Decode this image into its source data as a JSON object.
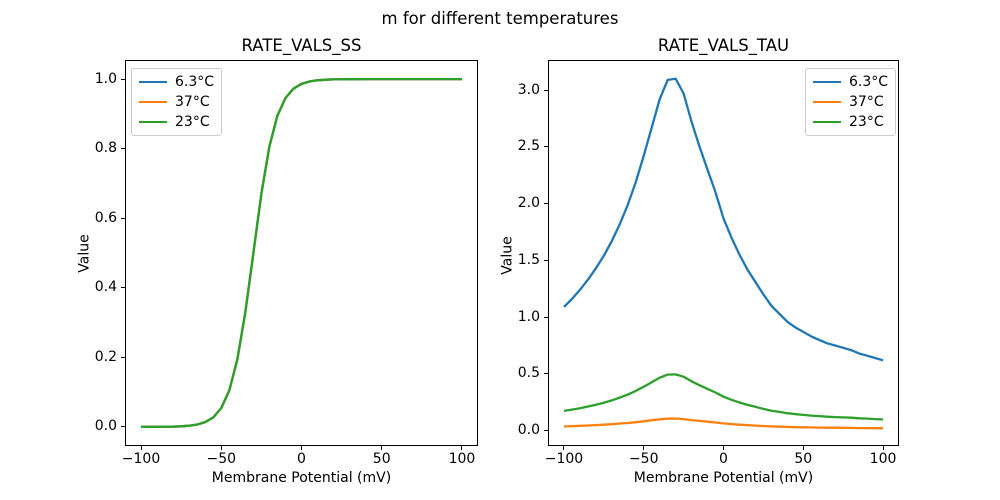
{
  "figure": {
    "suptitle": "m for different temperatures",
    "background": "#ffffff",
    "text_color": "#000000"
  },
  "chart_data": [
    {
      "type": "line",
      "title": "RATE_VALS_SS",
      "xlabel": "Membrane Potential (mV)",
      "ylabel": "Value",
      "xlim": [
        -110,
        110
      ],
      "ylim": [
        -0.055,
        1.055
      ],
      "grid": false,
      "legend_position": "upper left",
      "xticks": {
        "values": [
          -100,
          -50,
          0,
          50,
          100
        ],
        "labels": [
          "−100",
          "−50",
          "0",
          "50",
          "100"
        ]
      },
      "yticks": {
        "values": [
          0.0,
          0.2,
          0.4,
          0.6,
          0.8,
          1.0
        ],
        "labels": [
          "0.0",
          "0.2",
          "0.4",
          "0.6",
          "0.8",
          "1.0"
        ]
      },
      "x": [
        -100,
        -95,
        -90,
        -85,
        -80,
        -75,
        -70,
        -65,
        -60,
        -55,
        -50,
        -45,
        -40,
        -35,
        -30,
        -25,
        -20,
        -15,
        -10,
        -5,
        0,
        5,
        10,
        15,
        20,
        25,
        30,
        35,
        40,
        45,
        50,
        55,
        60,
        65,
        70,
        75,
        80,
        85,
        90,
        95,
        100
      ],
      "series": [
        {
          "name": "6.3°C",
          "color": "#1f77b4",
          "values": [
            0.0,
            0.0001,
            0.0002,
            0.0004,
            0.0008,
            0.0016,
            0.0033,
            0.0067,
            0.0136,
            0.0273,
            0.0543,
            0.105,
            0.1935,
            0.3289,
            0.5,
            0.6711,
            0.8065,
            0.895,
            0.9457,
            0.9727,
            0.9864,
            0.9933,
            0.9967,
            0.9984,
            0.9992,
            0.9996,
            0.9998,
            0.9999,
            1.0,
            1.0,
            1.0,
            1.0,
            1.0,
            1.0,
            1.0,
            1.0,
            1.0,
            1.0,
            1.0,
            1.0,
            1.0
          ]
        },
        {
          "name": "37°C",
          "color": "#ff7f0e",
          "values": [
            0.0,
            0.0001,
            0.0002,
            0.0004,
            0.0008,
            0.0016,
            0.0033,
            0.0067,
            0.0136,
            0.0273,
            0.0543,
            0.105,
            0.1935,
            0.3289,
            0.5,
            0.6711,
            0.8065,
            0.895,
            0.9457,
            0.9727,
            0.9864,
            0.9933,
            0.9967,
            0.9984,
            0.9992,
            0.9996,
            0.9998,
            0.9999,
            1.0,
            1.0,
            1.0,
            1.0,
            1.0,
            1.0,
            1.0,
            1.0,
            1.0,
            1.0,
            1.0,
            1.0,
            1.0
          ]
        },
        {
          "name": "23°C",
          "color": "#2ca02c",
          "values": [
            0.0,
            0.0001,
            0.0002,
            0.0004,
            0.0008,
            0.0016,
            0.0033,
            0.0067,
            0.0136,
            0.0273,
            0.0543,
            0.105,
            0.1935,
            0.3289,
            0.5,
            0.6711,
            0.8065,
            0.895,
            0.9457,
            0.9727,
            0.9864,
            0.9933,
            0.9967,
            0.9984,
            0.9992,
            0.9996,
            0.9998,
            0.9999,
            1.0,
            1.0,
            1.0,
            1.0,
            1.0,
            1.0,
            1.0,
            1.0,
            1.0,
            1.0,
            1.0,
            1.0,
            1.0
          ]
        }
      ]
    },
    {
      "type": "line",
      "title": "RATE_VALS_TAU",
      "xlabel": "Membrane Potential (mV)",
      "ylabel": "Value",
      "xlim": [
        -110,
        110
      ],
      "ylim": [
        -0.135,
        3.265
      ],
      "grid": false,
      "legend_position": "upper right",
      "xticks": {
        "values": [
          -100,
          -50,
          0,
          50,
          100
        ],
        "labels": [
          "−100",
          "−50",
          "0",
          "50",
          "100"
        ]
      },
      "yticks": {
        "values": [
          0.0,
          0.5,
          1.0,
          1.5,
          2.0,
          2.5,
          3.0
        ],
        "labels": [
          "0.0",
          "0.5",
          "1.0",
          "1.5",
          "2.0",
          "2.5",
          "3.0"
        ]
      },
      "x": [
        -100,
        -95,
        -90,
        -85,
        -80,
        -75,
        -70,
        -65,
        -60,
        -55,
        -50,
        -45,
        -40,
        -35,
        -30,
        -25,
        -20,
        -15,
        -10,
        -5,
        0,
        5,
        10,
        15,
        20,
        25,
        30,
        35,
        40,
        45,
        50,
        55,
        60,
        65,
        70,
        75,
        80,
        85,
        90,
        95,
        100
      ],
      "series": [
        {
          "name": "6.3°C",
          "color": "#1f77b4",
          "values": [
            1.09,
            1.16,
            1.24,
            1.33,
            1.43,
            1.54,
            1.67,
            1.82,
            1.99,
            2.19,
            2.42,
            2.67,
            2.92,
            3.09,
            3.1,
            2.97,
            2.72,
            2.5,
            2.3,
            2.1,
            1.87,
            1.7,
            1.55,
            1.42,
            1.31,
            1.2,
            1.1,
            1.03,
            0.96,
            0.91,
            0.87,
            0.83,
            0.8,
            0.77,
            0.75,
            0.73,
            0.71,
            0.68,
            0.66,
            0.64,
            0.62
          ]
        },
        {
          "name": "37°C",
          "color": "#ff7f0e",
          "values": [
            0.037,
            0.04,
            0.043,
            0.046,
            0.049,
            0.053,
            0.057,
            0.063,
            0.068,
            0.075,
            0.083,
            0.092,
            0.1,
            0.106,
            0.107,
            0.102,
            0.093,
            0.086,
            0.079,
            0.072,
            0.064,
            0.058,
            0.053,
            0.049,
            0.045,
            0.041,
            0.038,
            0.035,
            0.033,
            0.031,
            0.03,
            0.029,
            0.027,
            0.026,
            0.026,
            0.025,
            0.024,
            0.023,
            0.023,
            0.022,
            0.021
          ]
        },
        {
          "name": "23°C",
          "color": "#2ca02c",
          "values": [
            0.174,
            0.186,
            0.198,
            0.213,
            0.229,
            0.246,
            0.267,
            0.291,
            0.318,
            0.35,
            0.387,
            0.427,
            0.467,
            0.494,
            0.496,
            0.475,
            0.435,
            0.4,
            0.368,
            0.336,
            0.299,
            0.272,
            0.248,
            0.227,
            0.21,
            0.192,
            0.176,
            0.165,
            0.154,
            0.146,
            0.139,
            0.133,
            0.128,
            0.123,
            0.12,
            0.117,
            0.114,
            0.109,
            0.106,
            0.102,
            0.099
          ]
        }
      ]
    }
  ]
}
